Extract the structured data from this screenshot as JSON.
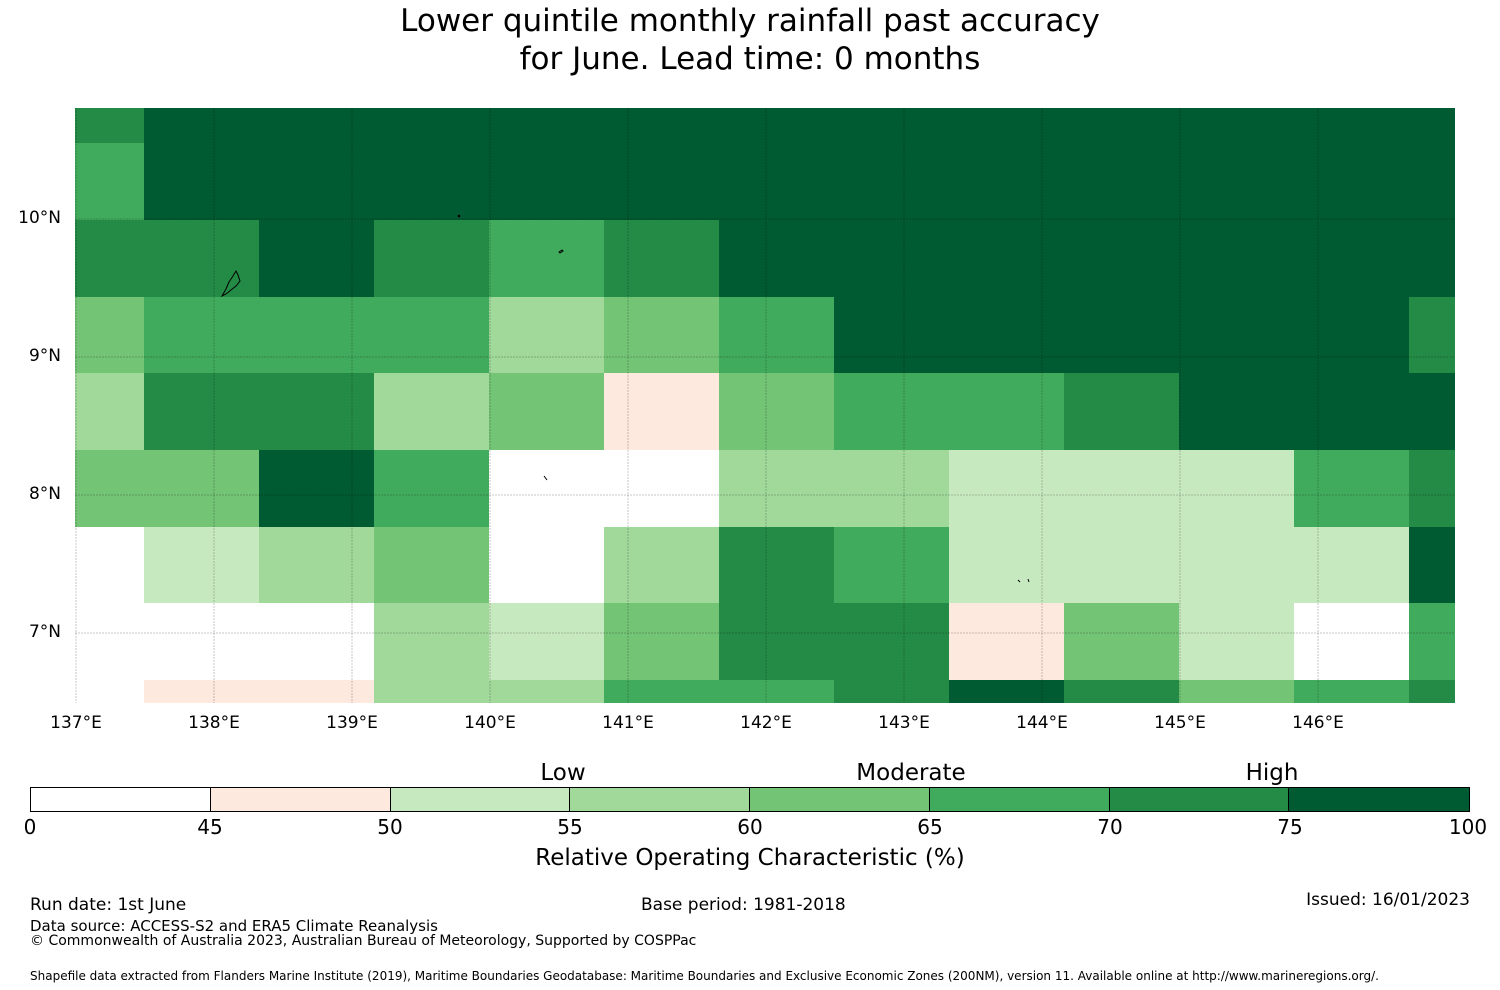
{
  "title": {
    "line1": "Lower quintile monthly rainfall past accuracy",
    "line2": "for June. Lead time: 0 months"
  },
  "palette": [
    "#ffffff",
    "#fee9df",
    "#c7e9c0",
    "#a1d99b",
    "#74c476",
    "#41ab5d",
    "#238b45",
    "#005a32"
  ],
  "map": {
    "lat_labels": [
      "10°N",
      "9°N",
      "8°N",
      "7°N"
    ],
    "lon_labels": [
      "137°E",
      "138°E",
      "139°E",
      "140°E",
      "141°E",
      "142°E",
      "143°E",
      "144°E",
      "145°E",
      "146°E"
    ],
    "grid_cells": [
      [
        6,
        7,
        7,
        7,
        7,
        7,
        7,
        7,
        7,
        7,
        7,
        7,
        7
      ],
      [
        5,
        7,
        7,
        7,
        7,
        7,
        7,
        7,
        7,
        7,
        7,
        7,
        7
      ],
      [
        6,
        6,
        7,
        6,
        5,
        6,
        7,
        7,
        7,
        7,
        7,
        7,
        7
      ],
      [
        4,
        5,
        5,
        5,
        3,
        4,
        5,
        7,
        7,
        7,
        7,
        7,
        6
      ],
      [
        3,
        6,
        6,
        3,
        4,
        1,
        4,
        5,
        5,
        6,
        7,
        7,
        7
      ],
      [
        4,
        4,
        7,
        5,
        0,
        0,
        3,
        3,
        2,
        2,
        2,
        5,
        6
      ],
      [
        0,
        2,
        3,
        4,
        0,
        3,
        6,
        5,
        2,
        2,
        2,
        2,
        7
      ],
      [
        0,
        0,
        0,
        3,
        2,
        4,
        6,
        6,
        1,
        4,
        2,
        0,
        5
      ],
      [
        0,
        1,
        1,
        3,
        3,
        5,
        5,
        6,
        7,
        6,
        4,
        5,
        6
      ]
    ]
  },
  "colorbar": {
    "category_labels": [
      "Low",
      "Moderate",
      "High"
    ],
    "ticks": [
      "0",
      "45",
      "50",
      "55",
      "60",
      "65",
      "70",
      "75",
      "100"
    ],
    "title": "Relative Operating Characteristic (%)"
  },
  "footer": {
    "run_date": "Run date: 1st June",
    "base_period": "Base period: 1981-2018",
    "issued": "Issued: 16/01/2023",
    "data_source": "Data source: ACCESS-S2 and ERA5 Climate Reanalysis",
    "copyright": "© Commonwealth of Australia 2023, Australian Bureau of Meteorology, Supported by COSPPac",
    "shapefile": "Shapefile data extracted from Flanders Marine Institute (2019), Maritime Boundaries Geodatabase: Maritime Boundaries and Exclusive Economic Zones (200NM), version 11. Available online at http://www.marineregions.org/."
  }
}
